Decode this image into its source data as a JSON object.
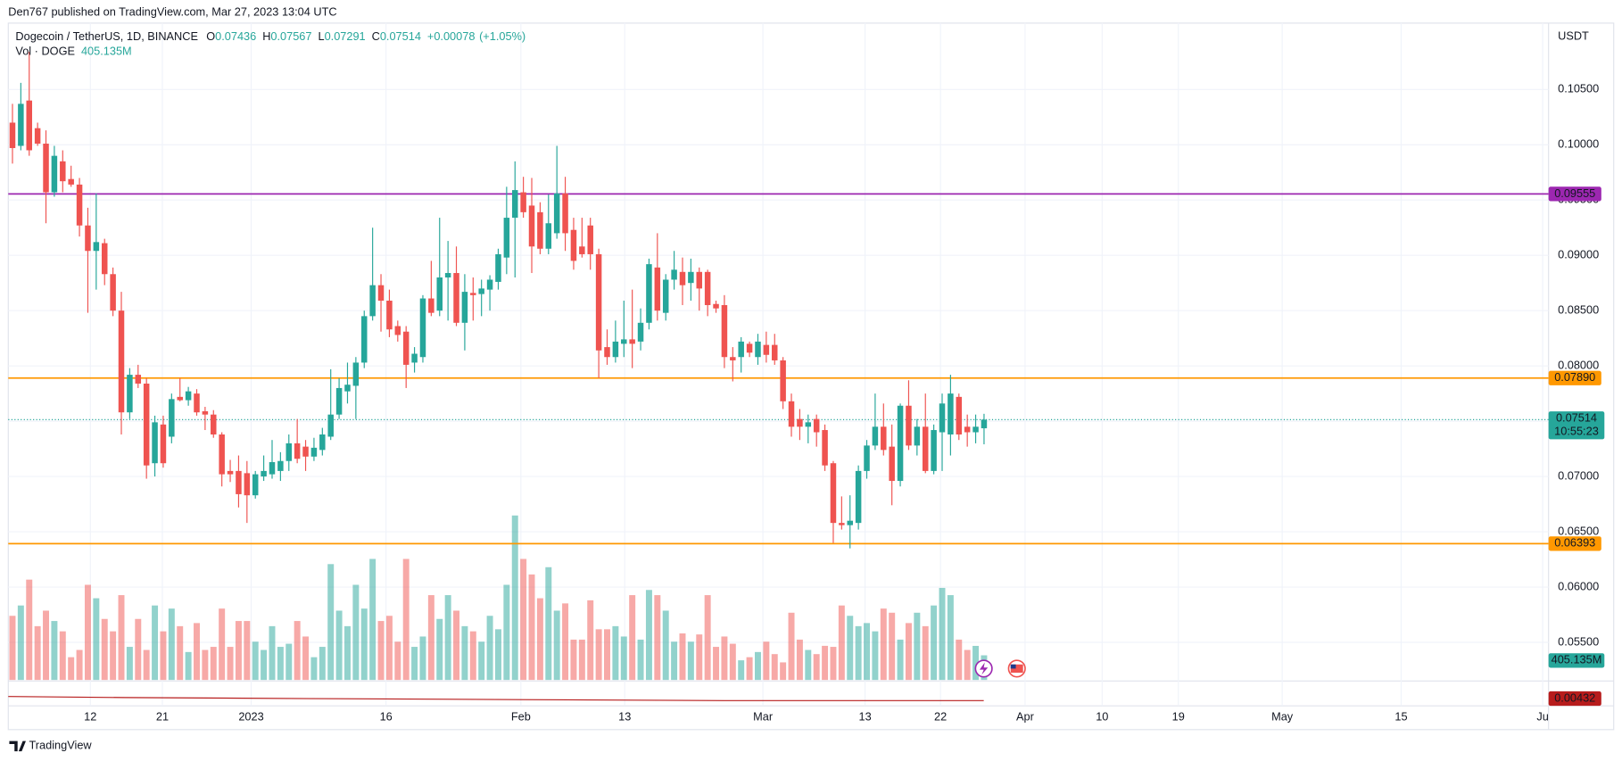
{
  "header": "Den767 published on TradingView.com, Mar 27, 2023 13:04 UTC",
  "footer": "TradingView",
  "chart_data": {
    "type": "candlestick",
    "title": "Dogecoin / TetherUS, 1D, BINANCE",
    "legend_labels": [
      "O",
      "H",
      "L",
      "C"
    ],
    "change": {
      "value": 0.00078,
      "label": "+0.00078"
    },
    "change_pct": {
      "value": 1.05,
      "label": "(+1.05%)"
    },
    "volume_title": "Vol · DOGE",
    "currency": "USDT",
    "countdown": "10:55:23",
    "colors": {
      "up": "#26a69a",
      "down": "#ef5350",
      "up_volume": "rgba(38,166,154,0.5)",
      "down_volume": "rgba(239,83,80,0.5)"
    },
    "ohlc": [
      [
        0.102,
        0.1037,
        0.0983,
        0.0997
      ],
      [
        0.0999,
        0.1056,
        0.0995,
        0.1037
      ],
      [
        0.104,
        0.1084,
        0.099,
        0.0995
      ],
      [
        0.1015,
        0.102,
        0.0999,
        0.1001
      ],
      [
        0.1001,
        0.1013,
        0.0929,
        0.0957
      ],
      [
        0.0957,
        0.0999,
        0.0953,
        0.099
      ],
      [
        0.0985,
        0.0995,
        0.0957,
        0.0967
      ],
      [
        0.0969,
        0.0981,
        0.0962,
        0.0964
      ],
      [
        0.0964,
        0.097,
        0.0917,
        0.0927
      ],
      [
        0.0927,
        0.0943,
        0.0848,
        0.0904
      ],
      [
        0.0904,
        0.0956,
        0.0869,
        0.0912
      ],
      [
        0.0911,
        0.0915,
        0.0873,
        0.0883
      ],
      [
        0.0883,
        0.0889,
        0.0845,
        0.085
      ],
      [
        0.085,
        0.0867,
        0.0738,
        0.0758
      ],
      [
        0.0758,
        0.0798,
        0.0752,
        0.0792
      ],
      [
        0.0792,
        0.0801,
        0.078,
        0.0784
      ],
      [
        0.0784,
        0.0789,
        0.0698,
        0.071
      ],
      [
        0.0712,
        0.0755,
        0.07,
        0.0749
      ],
      [
        0.0747,
        0.0755,
        0.0708,
        0.0712
      ],
      [
        0.0736,
        0.0775,
        0.073,
        0.077
      ],
      [
        0.0772,
        0.0789,
        0.0768,
        0.0769
      ],
      [
        0.0769,
        0.0781,
        0.0764,
        0.0777
      ],
      [
        0.0775,
        0.0779,
        0.0755,
        0.0758
      ],
      [
        0.0759,
        0.0763,
        0.0742,
        0.0756
      ],
      [
        0.0756,
        0.076,
        0.0735,
        0.0738
      ],
      [
        0.0738,
        0.074,
        0.0691,
        0.0702
      ],
      [
        0.0705,
        0.0715,
        0.0695,
        0.0702
      ],
      [
        0.0705,
        0.0719,
        0.0672,
        0.0684
      ],
      [
        0.0703,
        0.0714,
        0.0658,
        0.0683
      ],
      [
        0.0683,
        0.0705,
        0.068,
        0.0702
      ],
      [
        0.07,
        0.0719,
        0.0696,
        0.0705
      ],
      [
        0.0702,
        0.0733,
        0.0698,
        0.0713
      ],
      [
        0.0705,
        0.0722,
        0.0696,
        0.0714
      ],
      [
        0.0714,
        0.0738,
        0.0705,
        0.073
      ],
      [
        0.073,
        0.0752,
        0.0712,
        0.0716
      ],
      [
        0.0727,
        0.0733,
        0.0705,
        0.0718
      ],
      [
        0.0718,
        0.0735,
        0.0714,
        0.0726
      ],
      [
        0.0724,
        0.0744,
        0.0719,
        0.0738
      ],
      [
        0.0736,
        0.0797,
        0.0733,
        0.0756
      ],
      [
        0.0756,
        0.0789,
        0.0752,
        0.078
      ],
      [
        0.0777,
        0.0803,
        0.0766,
        0.0783
      ],
      [
        0.0782,
        0.0808,
        0.0752,
        0.0803
      ],
      [
        0.0803,
        0.085,
        0.0798,
        0.0845
      ],
      [
        0.0845,
        0.0925,
        0.0841,
        0.0873
      ],
      [
        0.0873,
        0.0883,
        0.0831,
        0.0859
      ],
      [
        0.0859,
        0.0869,
        0.0826,
        0.0833
      ],
      [
        0.0836,
        0.0841,
        0.0822,
        0.0828
      ],
      [
        0.0831,
        0.0836,
        0.078,
        0.0801
      ],
      [
        0.0803,
        0.0817,
        0.0794,
        0.0811
      ],
      [
        0.0808,
        0.0864,
        0.0803,
        0.0861
      ],
      [
        0.0861,
        0.0895,
        0.0845,
        0.0848
      ],
      [
        0.085,
        0.0934,
        0.0845,
        0.088
      ],
      [
        0.088,
        0.0913,
        0.0841,
        0.0884
      ],
      [
        0.0884,
        0.0908,
        0.0836,
        0.0839
      ],
      [
        0.0839,
        0.0883,
        0.0814,
        0.0867
      ],
      [
        0.0866,
        0.088,
        0.0841,
        0.0864
      ],
      [
        0.0865,
        0.0878,
        0.0845,
        0.087
      ],
      [
        0.0869,
        0.0882,
        0.085,
        0.0878
      ],
      [
        0.0876,
        0.0906,
        0.0869,
        0.0901
      ],
      [
        0.0898,
        0.0962,
        0.0883,
        0.0934
      ],
      [
        0.0934,
        0.0985,
        0.088,
        0.0959
      ],
      [
        0.0957,
        0.0971,
        0.0934,
        0.0939
      ],
      [
        0.0945,
        0.097,
        0.0884,
        0.0908
      ],
      [
        0.0939,
        0.0948,
        0.0901,
        0.0906
      ],
      [
        0.0906,
        0.0955,
        0.0901,
        0.0929
      ],
      [
        0.092,
        0.0999,
        0.0915,
        0.0956
      ],
      [
        0.0956,
        0.0971,
        0.0904,
        0.092
      ],
      [
        0.0923,
        0.0934,
        0.0887,
        0.0895
      ],
      [
        0.0908,
        0.0934,
        0.0898,
        0.0901
      ],
      [
        0.0927,
        0.0934,
        0.0887,
        0.0901
      ],
      [
        0.0901,
        0.0906,
        0.0789,
        0.0814
      ],
      [
        0.0817,
        0.0833,
        0.0801,
        0.0808
      ],
      [
        0.0808,
        0.0841,
        0.0803,
        0.0822
      ],
      [
        0.082,
        0.0859,
        0.0808,
        0.0824
      ],
      [
        0.0824,
        0.0869,
        0.0798,
        0.082
      ],
      [
        0.0822,
        0.0852,
        0.0814,
        0.0839
      ],
      [
        0.0839,
        0.0897,
        0.0833,
        0.0892
      ],
      [
        0.0889,
        0.092,
        0.0841,
        0.085
      ],
      [
        0.0848,
        0.0883,
        0.0841,
        0.0878
      ],
      [
        0.0878,
        0.0904,
        0.0869,
        0.0887
      ],
      [
        0.0885,
        0.0898,
        0.0855,
        0.0873
      ],
      [
        0.0875,
        0.0897,
        0.0859,
        0.0885
      ],
      [
        0.0885,
        0.0889,
        0.085,
        0.087
      ],
      [
        0.0885,
        0.0887,
        0.0845,
        0.0855
      ],
      [
        0.0856,
        0.0859,
        0.0848,
        0.0852
      ],
      [
        0.0855,
        0.0864,
        0.0798,
        0.0808
      ],
      [
        0.0808,
        0.0817,
        0.0786,
        0.0805
      ],
      [
        0.0808,
        0.0826,
        0.0794,
        0.0822
      ],
      [
        0.082,
        0.0822,
        0.0808,
        0.0812
      ],
      [
        0.0808,
        0.0829,
        0.0801,
        0.0822
      ],
      [
        0.0819,
        0.0831,
        0.0803,
        0.081
      ],
      [
        0.0819,
        0.0829,
        0.0801,
        0.0805
      ],
      [
        0.0805,
        0.0808,
        0.0761,
        0.0768
      ],
      [
        0.0768,
        0.0775,
        0.0736,
        0.0745
      ],
      [
        0.0752,
        0.0761,
        0.0733,
        0.0745
      ],
      [
        0.0745,
        0.0756,
        0.073,
        0.0749
      ],
      [
        0.0752,
        0.0756,
        0.0727,
        0.074
      ],
      [
        0.0742,
        0.0747,
        0.0705,
        0.071
      ],
      [
        0.0712,
        0.0714,
        0.064,
        0.0658
      ],
      [
        0.0658,
        0.0682,
        0.0652,
        0.0656
      ],
      [
        0.0656,
        0.0683,
        0.0635,
        0.066
      ],
      [
        0.0658,
        0.071,
        0.0652,
        0.0705
      ],
      [
        0.0705,
        0.0733,
        0.0698,
        0.0728
      ],
      [
        0.0728,
        0.0775,
        0.0724,
        0.0745
      ],
      [
        0.0745,
        0.0766,
        0.0719,
        0.0724
      ],
      [
        0.0727,
        0.0747,
        0.0674,
        0.0696
      ],
      [
        0.0696,
        0.0766,
        0.0691,
        0.0764
      ],
      [
        0.0764,
        0.0787,
        0.0724,
        0.0728
      ],
      [
        0.0728,
        0.0752,
        0.0719,
        0.0745
      ],
      [
        0.0745,
        0.0775,
        0.0703,
        0.0705
      ],
      [
        0.0705,
        0.0747,
        0.0702,
        0.0742
      ],
      [
        0.074,
        0.0775,
        0.0705,
        0.0766
      ],
      [
        0.0738,
        0.0792,
        0.0719,
        0.0775
      ],
      [
        0.0772,
        0.0775,
        0.0733,
        0.0738
      ],
      [
        0.0745,
        0.0756,
        0.0727,
        0.074
      ],
      [
        0.074,
        0.0756,
        0.073,
        0.0745
      ],
      [
        0.07436,
        0.07567,
        0.07291,
        0.07514
      ]
    ],
    "volume": {
      "values": [
        1054,
        1224,
        1649,
        884,
        1139,
        969,
        799,
        374,
        493,
        1564,
        1343,
        1003,
        799,
        1394,
        544,
        1003,
        493,
        1224,
        799,
        1173,
        884,
        459,
        935,
        493,
        544,
        1173,
        544,
        969,
        969,
        629,
        493,
        884,
        544,
        595,
        969,
        714,
        374,
        544,
        1904,
        1139,
        884,
        1564,
        1173,
        1989,
        969,
        1054,
        629,
        1989,
        544,
        714,
        1394,
        1003,
        1394,
        1139,
        884,
        799,
        629,
        1054,
        833,
        1564,
        2703,
        1989,
        1734,
        1343,
        1853,
        1139,
        1258,
        663,
        663,
        1309,
        833,
        833,
        884,
        714,
        1394,
        663,
        1479,
        1394,
        1139,
        629,
        765,
        629,
        748,
        1394,
        544,
        714,
        595,
        323,
        374,
        459,
        629,
        425,
        289,
        1105,
        663,
        493,
        425,
        561,
        544,
        1224,
        1054,
        884,
        935,
        799,
        1173,
        1105,
        663,
        935,
        1105,
        884,
        1224,
        1513,
        1394,
        663,
        493,
        560,
        405.135
      ],
      "last_label": "405.135M"
    },
    "levels": [
      {
        "value": 0.09555,
        "color": "#9c27b0"
      },
      {
        "value": 0.0789,
        "label": "0.07890",
        "color": "#ff9800"
      },
      {
        "value": 0.06393,
        "color": "#ff9800"
      }
    ],
    "indicator_last": 0.00432,
    "ylim": [
      0.0516,
      0.111
    ],
    "yticks": [
      {
        "value": 0.105,
        "label": "0.10500"
      },
      {
        "value": 0.1,
        "label": "0.10000"
      },
      {
        "value": 0.095,
        "label": "0.09500"
      },
      {
        "value": 0.09,
        "label": "0.09000"
      },
      {
        "value": 0.085,
        "label": "0.08500"
      },
      {
        "value": 0.08,
        "label": "0.08000"
      },
      {
        "value": 0.075,
        "label": "0.07500"
      },
      {
        "value": 0.07,
        "label": "0.07000"
      },
      {
        "value": 0.065,
        "label": "0.06500"
      },
      {
        "value": 0.06,
        "label": "0.06000"
      },
      {
        "value": 0.055,
        "label": "0.05500"
      }
    ],
    "xlim": [
      -0.5,
      183.4
    ],
    "xticks": [
      {
        "value": 9.3,
        "label": "12"
      },
      {
        "value": 17.9,
        "label": "21"
      },
      {
        "value": 28.5,
        "label": "2023"
      },
      {
        "value": 44.6,
        "label": "16"
      },
      {
        "value": 60.7,
        "label": "Feb"
      },
      {
        "value": 73.1,
        "label": "13"
      },
      {
        "value": 89.6,
        "label": "Mar"
      },
      {
        "value": 101.8,
        "label": "13"
      },
      {
        "value": 110.8,
        "label": "22"
      },
      {
        "value": 120.9,
        "label": "Apr"
      },
      {
        "value": 130.1,
        "label": "10"
      },
      {
        "value": 139.2,
        "label": "19"
      },
      {
        "value": 151.6,
        "label": "May"
      },
      {
        "value": 165.8,
        "label": "15"
      },
      {
        "value": 182.7,
        "label": "Ju"
      }
    ],
    "grid": true
  }
}
